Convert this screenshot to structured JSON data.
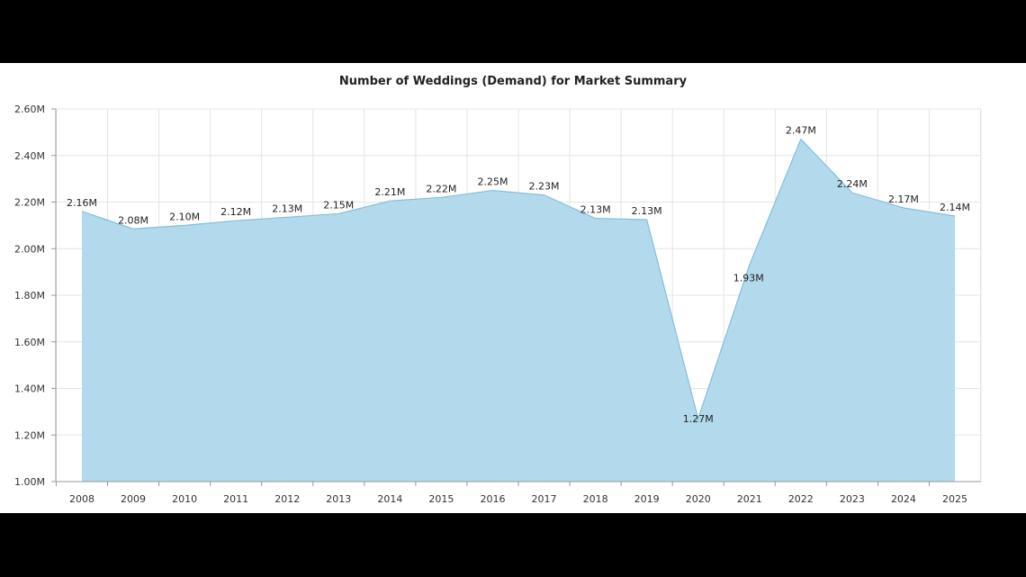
{
  "chart_data": {
    "type": "area",
    "title": "Number of Weddings (Demand) for Market Summary",
    "xlabel": "",
    "ylabel": "",
    "ylim": [
      1000000,
      2600000
    ],
    "grid": true,
    "legend": "none",
    "color": "#b3d9ec",
    "line_color": "#7fc0e0",
    "y_ticks": [
      {
        "value": 1000000,
        "label": "1.00M"
      },
      {
        "value": 1200000,
        "label": "1.20M"
      },
      {
        "value": 1400000,
        "label": "1.40M"
      },
      {
        "value": 1600000,
        "label": "1.60M"
      },
      {
        "value": 1800000,
        "label": "1.80M"
      },
      {
        "value": 2000000,
        "label": "2.00M"
      },
      {
        "value": 2200000,
        "label": "2.20M"
      },
      {
        "value": 2400000,
        "label": "2.40M"
      },
      {
        "value": 2600000,
        "label": "2.60M"
      }
    ],
    "categories": [
      "2008",
      "2009",
      "2010",
      "2011",
      "2012",
      "2013",
      "2014",
      "2015",
      "2016",
      "2017",
      "2018",
      "2019",
      "2020",
      "2021",
      "2022",
      "2023",
      "2024",
      "2025"
    ],
    "values": [
      2160000,
      2085000,
      2100000,
      2120000,
      2135000,
      2150000,
      2205000,
      2220000,
      2250000,
      2230000,
      2130000,
      2125000,
      1270000,
      1930000,
      2470000,
      2240000,
      2175000,
      2140000
    ],
    "value_labels": [
      "2.16M",
      "2.08M",
      "2.10M",
      "2.12M",
      "2.13M",
      "2.15M",
      "2.21M",
      "2.22M",
      "2.25M",
      "2.23M",
      "2.13M",
      "2.13M",
      "1.27M",
      "1.93M",
      "2.47M",
      "2.24M",
      "2.17M",
      "2.14M"
    ]
  }
}
